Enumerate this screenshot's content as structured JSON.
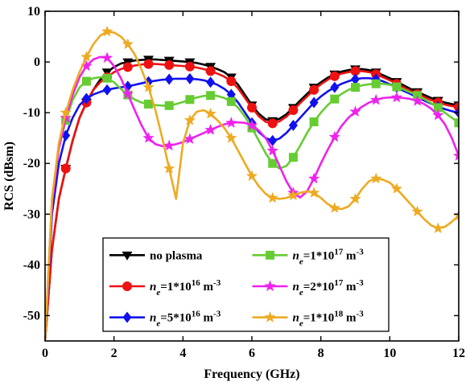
{
  "chart_data": {
    "type": "line",
    "xlabel": "Frequency (GHz)",
    "ylabel": "RCS (dBsm)",
    "xlim": [
      0,
      12
    ],
    "ylim": [
      -55,
      10
    ],
    "xticks": [
      0,
      2,
      4,
      6,
      8,
      10,
      12
    ],
    "yticks": [
      10,
      0,
      -10,
      -20,
      -30,
      -40,
      -50
    ],
    "xtick_labels": [
      "0",
      "2",
      "4",
      "6",
      "8",
      "10",
      "12"
    ],
    "ytick_labels": [
      "10",
      "0",
      "-10",
      "-20",
      "-30",
      "-40",
      "-50"
    ],
    "grid": false,
    "legend_placement": "bottom-center",
    "legend_columns": 2,
    "series": [
      {
        "name": "no plasma",
        "legend_parts": [
          {
            "t": "no plasma"
          }
        ],
        "color": "#000000",
        "marker": "triangle-down",
        "x": [
          0.0,
          0.2,
          0.4,
          0.6,
          0.8,
          1.0,
          1.2,
          1.4,
          1.6,
          1.8,
          2.0,
          2.2,
          2.4,
          2.6,
          2.8,
          3.0,
          3.2,
          3.4,
          3.6,
          3.8,
          4.0,
          4.2,
          4.4,
          4.6,
          4.8,
          5.0,
          5.2,
          5.4,
          5.6,
          5.8,
          6.0,
          6.2,
          6.4,
          6.6,
          6.8,
          7.0,
          7.2,
          7.4,
          7.6,
          7.8,
          8.0,
          8.2,
          8.4,
          8.6,
          8.8,
          9.0,
          9.2,
          9.4,
          9.6,
          9.8,
          10.0,
          10.2,
          10.4,
          10.6,
          10.8,
          11.0,
          11.2,
          11.4,
          11.6,
          11.8,
          12.0
        ],
        "y": [
          -55,
          -37,
          -27,
          -21,
          -15.5,
          -11,
          -8,
          -5.5,
          -3.5,
          -2,
          -1,
          -0.3,
          0,
          0.3,
          0.4,
          0.5,
          0.5,
          0.4,
          0.3,
          0.2,
          0.1,
          0,
          -0.2,
          -0.5,
          -0.9,
          -1.4,
          -2.0,
          -3.0,
          -4.5,
          -6.5,
          -8.5,
          -10.2,
          -11.3,
          -11.6,
          -11.2,
          -10.3,
          -9.0,
          -7.6,
          -6.3,
          -5.0,
          -4.0,
          -3.1,
          -2.4,
          -1.9,
          -1.6,
          -1.4,
          -1.4,
          -1.6,
          -2.0,
          -2.6,
          -3.2,
          -3.9,
          -4.6,
          -5.3,
          -5.9,
          -6.5,
          -7.1,
          -7.6,
          -8.0,
          -8.3,
          -8.5
        ]
      },
      {
        "name": "n_e=1*10^16 m^-3",
        "legend_parts": [
          {
            "t": "n",
            "style": "italic"
          },
          {
            "t": "e",
            "sub": true,
            "style": "italic"
          },
          {
            "t": "=1*10"
          },
          {
            "t": "16",
            "sup": true
          },
          {
            "t": " m"
          },
          {
            "t": "-3",
            "sup": true
          }
        ],
        "color": "#ee1111",
        "marker": "circle",
        "x": [
          0.0,
          0.2,
          0.4,
          0.6,
          0.8,
          1.0,
          1.2,
          1.4,
          1.6,
          1.8,
          2.0,
          2.2,
          2.4,
          2.6,
          2.8,
          3.0,
          3.2,
          3.4,
          3.6,
          3.8,
          4.0,
          4.2,
          4.4,
          4.6,
          4.8,
          5.0,
          5.2,
          5.4,
          5.6,
          5.8,
          6.0,
          6.2,
          6.4,
          6.6,
          6.8,
          7.0,
          7.2,
          7.4,
          7.6,
          7.8,
          8.0,
          8.2,
          8.4,
          8.6,
          8.8,
          9.0,
          9.2,
          9.4,
          9.6,
          9.8,
          10.0,
          10.2,
          10.4,
          10.6,
          10.8,
          11.0,
          11.2,
          11.4,
          11.6,
          11.8,
          12.0
        ],
        "y": [
          -55,
          -37,
          -27,
          -21,
          -15.5,
          -11,
          -8,
          -5.5,
          -4,
          -3,
          -2,
          -1.4,
          -1,
          -0.7,
          -0.5,
          -0.4,
          -0.4,
          -0.5,
          -0.6,
          -0.7,
          -0.8,
          -0.9,
          -1.1,
          -1.4,
          -1.8,
          -2.3,
          -2.9,
          -3.8,
          -5.2,
          -7.1,
          -9.0,
          -10.7,
          -11.8,
          -12.1,
          -11.7,
          -10.8,
          -9.5,
          -8.1,
          -6.8,
          -5.5,
          -4.4,
          -3.5,
          -2.8,
          -2.3,
          -2.0,
          -1.8,
          -1.8,
          -2.0,
          -2.4,
          -3.0,
          -3.6,
          -4.3,
          -5.0,
          -5.7,
          -6.3,
          -6.9,
          -7.5,
          -8.0,
          -8.4,
          -8.7,
          -8.9
        ]
      },
      {
        "name": "n_e=5*10^16 m^-3",
        "legend_parts": [
          {
            "t": "n",
            "style": "italic"
          },
          {
            "t": "e",
            "sub": true,
            "style": "italic"
          },
          {
            "t": "=5*10"
          },
          {
            "t": "16",
            "sup": true
          },
          {
            "t": " m"
          },
          {
            "t": "-3",
            "sup": true
          }
        ],
        "color": "#1111ee",
        "marker": "diamond",
        "x": [
          0.0,
          0.2,
          0.4,
          0.6,
          0.8,
          1.0,
          1.2,
          1.4,
          1.6,
          1.8,
          2.0,
          2.2,
          2.4,
          2.6,
          2.8,
          3.0,
          3.2,
          3.4,
          3.6,
          3.8,
          4.0,
          4.2,
          4.4,
          4.6,
          4.8,
          5.0,
          5.2,
          5.4,
          5.6,
          5.8,
          6.0,
          6.2,
          6.4,
          6.6,
          6.8,
          7.0,
          7.2,
          7.4,
          7.6,
          7.8,
          8.0,
          8.2,
          8.4,
          8.6,
          8.8,
          9.0,
          9.2,
          9.4,
          9.6,
          9.8,
          10.0,
          10.2,
          10.4,
          10.6,
          10.8,
          11.0,
          11.2,
          11.4,
          11.6,
          11.8,
          12.0
        ],
        "y": [
          -55,
          -30,
          -20,
          -14.5,
          -11,
          -8.5,
          -7.2,
          -6.4,
          -5.9,
          -5.5,
          -5.2,
          -5.0,
          -4.8,
          -4.5,
          -4.2,
          -3.9,
          -3.7,
          -3.5,
          -3.4,
          -3.3,
          -3.3,
          -3.3,
          -3.4,
          -3.6,
          -4.0,
          -4.5,
          -5.3,
          -6.4,
          -8.0,
          -10.0,
          -12.0,
          -13.8,
          -15.0,
          -15.5,
          -15.1,
          -14.0,
          -12.5,
          -11.0,
          -9.5,
          -8.0,
          -6.8,
          -5.8,
          -5.0,
          -4.3,
          -3.8,
          -3.4,
          -3.2,
          -3.2,
          -3.4,
          -3.8,
          -4.4,
          -5.0,
          -5.7,
          -6.3,
          -7.0,
          -7.6,
          -8.2,
          -8.8,
          -9.3,
          -9.7,
          -10.0
        ]
      },
      {
        "name": "n_e=1*10^17 m^-3",
        "legend_parts": [
          {
            "t": "n",
            "style": "italic"
          },
          {
            "t": "e",
            "sub": true,
            "style": "italic"
          },
          {
            "t": "=1*10"
          },
          {
            "t": "17",
            "sup": true
          },
          {
            "t": " m"
          },
          {
            "t": "-3",
            "sup": true
          }
        ],
        "color": "#66cc33",
        "marker": "square",
        "x": [
          0.0,
          0.2,
          0.4,
          0.6,
          0.8,
          1.0,
          1.2,
          1.4,
          1.6,
          1.8,
          2.0,
          2.2,
          2.4,
          2.6,
          2.8,
          3.0,
          3.2,
          3.4,
          3.6,
          3.8,
          4.0,
          4.2,
          4.4,
          4.6,
          4.8,
          5.0,
          5.2,
          5.4,
          5.6,
          5.8,
          6.0,
          6.2,
          6.4,
          6.6,
          6.8,
          7.0,
          7.2,
          7.4,
          7.6,
          7.8,
          8.0,
          8.2,
          8.4,
          8.6,
          8.8,
          9.0,
          9.2,
          9.4,
          9.6,
          9.8,
          10.0,
          10.2,
          10.4,
          10.6,
          10.8,
          11.0,
          11.2,
          11.4,
          11.6,
          11.8,
          12.0
        ],
        "y": [
          -55,
          -27,
          -17,
          -11.5,
          -7.5,
          -5,
          -3.8,
          -3.2,
          -3.0,
          -3.2,
          -4.0,
          -5.3,
          -6.5,
          -7.4,
          -8.0,
          -8.3,
          -8.5,
          -8.6,
          -8.6,
          -8.3,
          -7.9,
          -7.4,
          -7.0,
          -6.7,
          -6.6,
          -6.7,
          -7.1,
          -7.8,
          -9.0,
          -10.8,
          -13.0,
          -15.5,
          -18.0,
          -20.0,
          -21.0,
          -20.5,
          -18.8,
          -16.5,
          -14.0,
          -11.8,
          -10.0,
          -8.5,
          -7.3,
          -6.3,
          -5.5,
          -5.0,
          -4.6,
          -4.4,
          -4.3,
          -4.3,
          -4.5,
          -4.9,
          -5.4,
          -6.0,
          -6.6,
          -7.3,
          -8.1,
          -9.0,
          -10.0,
          -11.0,
          -12.0
        ]
      },
      {
        "name": "n_e=2*10^17 m^-3",
        "legend_parts": [
          {
            "t": "n",
            "style": "italic"
          },
          {
            "t": "e",
            "sub": true,
            "style": "italic"
          },
          {
            "t": "=2*10"
          },
          {
            "t": "17",
            "sup": true
          },
          {
            "t": " m"
          },
          {
            "t": "-3",
            "sup": true
          }
        ],
        "color": "#ee22ee",
        "marker": "star",
        "x": [
          0.0,
          0.2,
          0.4,
          0.6,
          0.8,
          1.0,
          1.2,
          1.4,
          1.6,
          1.8,
          2.0,
          2.2,
          2.4,
          2.6,
          2.8,
          3.0,
          3.2,
          3.4,
          3.6,
          3.8,
          4.0,
          4.2,
          4.4,
          4.6,
          4.8,
          5.0,
          5.2,
          5.4,
          5.6,
          5.8,
          6.0,
          6.2,
          6.4,
          6.6,
          6.8,
          7.0,
          7.2,
          7.4,
          7.6,
          7.8,
          8.0,
          8.2,
          8.4,
          8.6,
          8.8,
          9.0,
          9.2,
          9.4,
          9.6,
          9.8,
          10.0,
          10.2,
          10.4,
          10.6,
          10.8,
          11.0,
          11.2,
          11.4,
          11.6,
          11.8,
          12.0
        ],
        "y": [
          -55,
          -28,
          -17,
          -11,
          -6.5,
          -3,
          -0.8,
          0.5,
          1.0,
          0.8,
          -0.8,
          -3.2,
          -6.3,
          -9.5,
          -12.5,
          -15.0,
          -16.2,
          -16.6,
          -16.5,
          -16.2,
          -15.8,
          -15.2,
          -14.6,
          -14.0,
          -13.4,
          -12.8,
          -12.3,
          -12.0,
          -11.9,
          -12.0,
          -12.5,
          -13.5,
          -15.0,
          -17.5,
          -20.5,
          -23.5,
          -25.8,
          -26.7,
          -25.5,
          -23.0,
          -20.0,
          -17.3,
          -14.8,
          -12.6,
          -11.0,
          -9.8,
          -8.8,
          -8.0,
          -7.5,
          -7.1,
          -7.0,
          -7.0,
          -7.1,
          -7.3,
          -7.7,
          -8.3,
          -9.2,
          -10.5,
          -12.3,
          -15.0,
          -18.5
        ]
      },
      {
        "name": "n_e=1*10^18 m^-3",
        "legend_parts": [
          {
            "t": "n",
            "style": "italic"
          },
          {
            "t": "e",
            "sub": true,
            "style": "italic"
          },
          {
            "t": "=1*10"
          },
          {
            "t": "18",
            "sup": true
          },
          {
            "t": " m"
          },
          {
            "t": "-3",
            "sup": true
          }
        ],
        "color": "#eeaa22",
        "marker": "star",
        "x": [
          0.0,
          0.2,
          0.4,
          0.6,
          0.8,
          1.0,
          1.2,
          1.4,
          1.6,
          1.8,
          2.0,
          2.2,
          2.4,
          2.6,
          2.8,
          3.0,
          3.2,
          3.4,
          3.6,
          3.8,
          4.0,
          4.2,
          4.4,
          4.6,
          4.8,
          5.0,
          5.2,
          5.4,
          5.6,
          5.8,
          6.0,
          6.2,
          6.4,
          6.6,
          6.8,
          7.0,
          7.2,
          7.4,
          7.6,
          7.8,
          8.0,
          8.2,
          8.4,
          8.6,
          8.8,
          9.0,
          9.2,
          9.4,
          9.6,
          9.8,
          10.0,
          10.2,
          10.4,
          10.6,
          10.8,
          11.0,
          11.2,
          11.4,
          11.6,
          11.8,
          12.0
        ],
        "y": [
          -55,
          -27,
          -16,
          -10,
          -5.5,
          -2,
          1,
          3.5,
          5.2,
          6.0,
          5.8,
          5.0,
          3.5,
          1.5,
          -1.5,
          -5.0,
          -9.5,
          -15.0,
          -21.0,
          -27.0,
          -16.0,
          -11.5,
          -9.8,
          -9.5,
          -10.2,
          -11.5,
          -13.0,
          -15.0,
          -17.5,
          -20.0,
          -22.5,
          -24.5,
          -26.0,
          -26.8,
          -27.0,
          -26.8,
          -26.3,
          -25.8,
          -25.5,
          -25.8,
          -26.8,
          -28.0,
          -28.8,
          -29.0,
          -28.5,
          -27.0,
          -25.0,
          -23.5,
          -23.0,
          -23.2,
          -23.8,
          -25.0,
          -26.5,
          -28.0,
          -29.5,
          -31.0,
          -32.2,
          -32.8,
          -32.5,
          -31.5,
          -30.3
        ]
      }
    ]
  }
}
